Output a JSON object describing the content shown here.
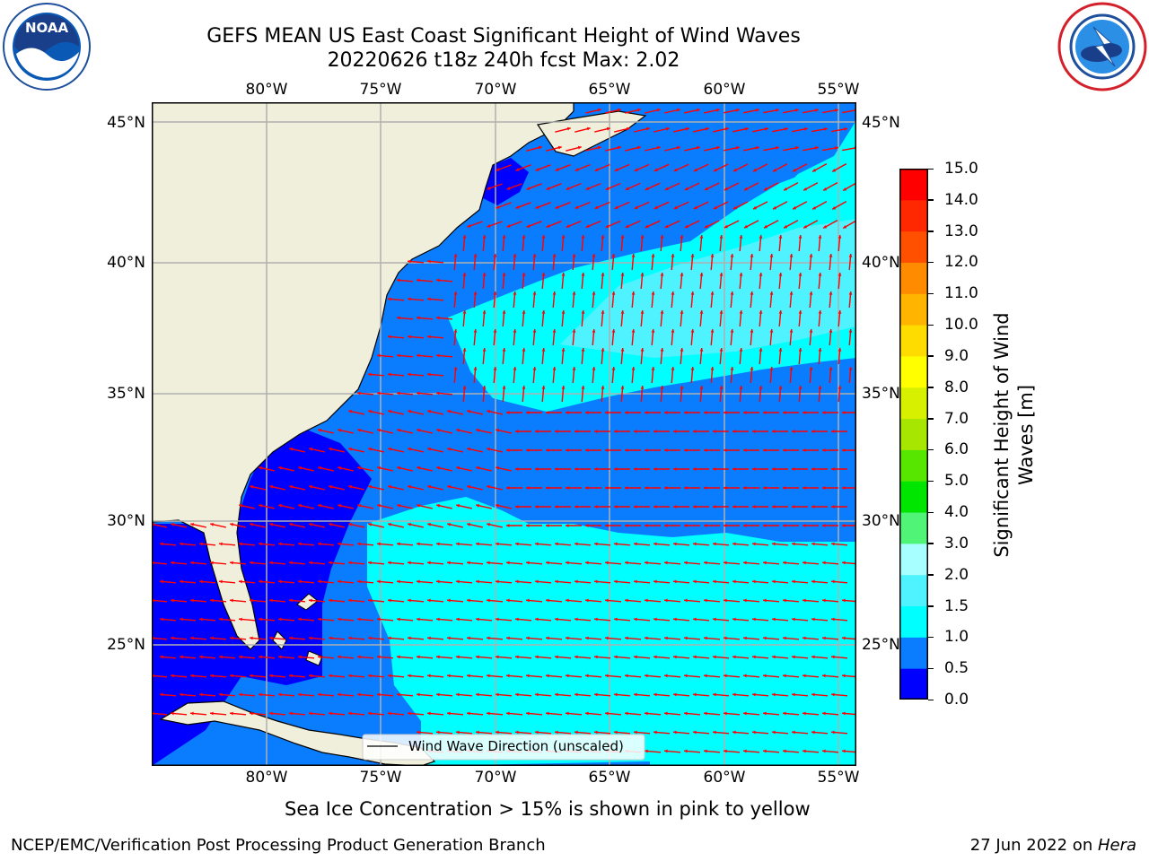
{
  "title": {
    "line1": "GEFS MEAN US East Coast Significant Height of Wind Waves",
    "line2": "20220626 t18z 240h fcst   Max: 2.02"
  },
  "logos": {
    "left": {
      "text": "NOAA",
      "icon": "noaa-logo-icon"
    },
    "right": {
      "icon": "national-weather-service-logo-icon"
    }
  },
  "map": {
    "lon_labels": [
      "80°W",
      "75°W",
      "70°W",
      "65°W",
      "60°W",
      "55°W"
    ],
    "lat_labels": [
      "45°N",
      "40°N",
      "35°N",
      "30°N",
      "25°N"
    ],
    "legend_label": "Wind Wave Direction (unscaled)",
    "arrow_color": "#ff0000",
    "land_color": "#efefdc",
    "grid_color": "#b0b0b0"
  },
  "colorbar": {
    "label_line1": "Significant Height of Wind",
    "label_line2": "Waves [m]",
    "ticks": [
      "0.0",
      "0.5",
      "1.0",
      "1.5",
      "2.0",
      "3.0",
      "4.0",
      "5.0",
      "6.0",
      "7.0",
      "8.0",
      "9.0",
      "10.0",
      "11.0",
      "12.0",
      "13.0",
      "14.0",
      "15.0"
    ],
    "colors": [
      "#0000ff",
      "#0a7dff",
      "#00ffff",
      "#4ff2ff",
      "#a8ffff",
      "#50f578",
      "#00e600",
      "#56e600",
      "#a6e600",
      "#d7f000",
      "#ffff00",
      "#ffdc00",
      "#ffb400",
      "#ff8c00",
      "#ff5000",
      "#ff2800",
      "#ff0000"
    ]
  },
  "subtitle": "Sea Ice Concentration > 15% is shown in pink to yellow",
  "footer": {
    "left": "NCEP/EMC/Verification Post Processing Product Generation Branch",
    "right_prefix": "27 Jun 2022 on ",
    "right_host": "Hera"
  }
}
